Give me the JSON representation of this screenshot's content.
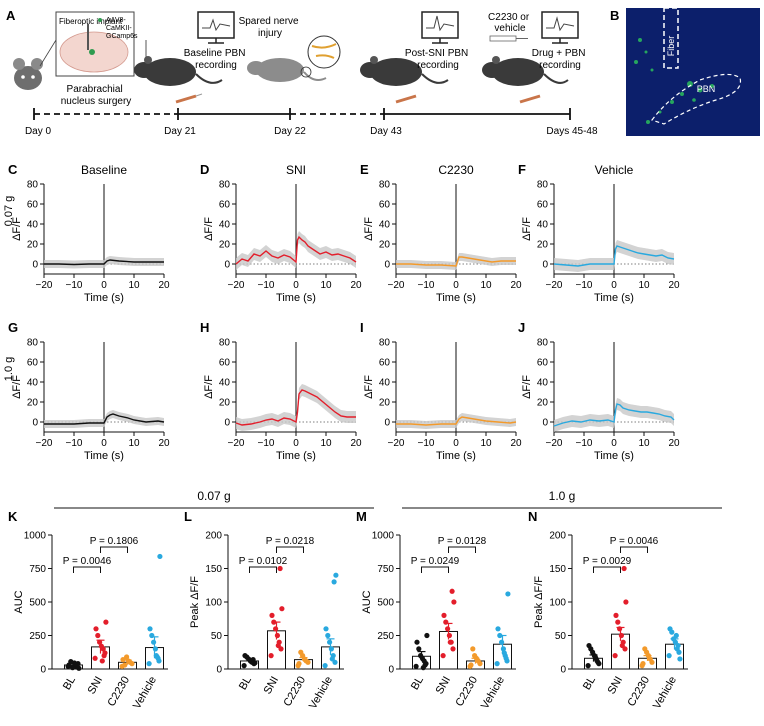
{
  "panelA": {
    "letter": "A",
    "implant_label": "Fiberoptic implant",
    "virus_label": [
      "AAV8-",
      "CaMKII-",
      "GCamp6s"
    ],
    "surgery_label": [
      "Parabrachial",
      "nucleus surgery"
    ],
    "baseline_label": [
      "Baseline PBN",
      "recording"
    ],
    "sni_label": [
      "Spared nerve",
      "injury"
    ],
    "postsni_label": [
      "Post-SNI PBN",
      "recording"
    ],
    "drug_admin_label": [
      "C2230 or",
      "vehicle"
    ],
    "drug_rec_label": [
      "Drug + PBN",
      "recording"
    ],
    "timeline": [
      "Day 0",
      "Day 21",
      "Day 22",
      "Day 43",
      "Days 45-48"
    ]
  },
  "panelB": {
    "letter": "B",
    "fiber_label": "Fiber",
    "pbn_label": "PBN"
  },
  "rows": [
    {
      "row_label": "0.07 g",
      "letters": [
        "C",
        "D",
        "E",
        "F"
      ]
    },
    {
      "row_label": "1.0 g",
      "letters": [
        "G",
        "H",
        "I",
        "J"
      ]
    }
  ],
  "trace_titles": [
    "Baseline",
    "SNI",
    "C2230",
    "Vehicle"
  ],
  "trace_axes": {
    "ylabel": "ΔF/F",
    "xlabel": "Time (s)",
    "yticks": [
      "0",
      "20",
      "40",
      "60",
      "80"
    ],
    "xticks": [
      "−20",
      "−10",
      "0",
      "10",
      "20"
    ]
  },
  "group_headers": [
    "0.07 g",
    "1.0 g"
  ],
  "colors": {
    "BL": "#111111",
    "SNI": "#e31e2b",
    "C2230": "#f39a2b",
    "Vehicle": "#29a9df",
    "sem": "#c8c8c8",
    "brain_bg": "#0c1f6b",
    "brain_signal": "#2fd45a"
  },
  "chart_data": [
    {
      "panel": "C",
      "type": "line",
      "title": "Baseline",
      "xlabel": "Time (s)",
      "ylabel": "ΔF/F",
      "xlim": [
        -20,
        20
      ],
      "ylim": [
        -10,
        80
      ],
      "x": [
        -20,
        -15,
        -10,
        -5,
        0,
        1,
        2,
        5,
        10,
        15,
        20
      ],
      "y": [
        0,
        0,
        -0.5,
        0,
        0,
        3,
        4,
        3,
        2,
        2,
        2
      ]
    },
    {
      "panel": "D",
      "type": "line",
      "title": "SNI",
      "xlabel": "Time (s)",
      "ylabel": "ΔF/F",
      "xlim": [
        -20,
        20
      ],
      "ylim": [
        -10,
        80
      ],
      "x": [
        -20,
        -18,
        -16,
        -14,
        -12,
        -10,
        -8,
        -6,
        -4,
        -2,
        0,
        0.5,
        1,
        2,
        3,
        4,
        6,
        8,
        10,
        12,
        14,
        16,
        18,
        20
      ],
      "y": [
        0,
        5,
        3,
        10,
        8,
        13,
        8,
        6,
        9,
        7,
        2,
        24,
        27,
        24,
        22,
        18,
        14,
        10,
        12,
        9,
        10,
        8,
        6,
        2
      ]
    },
    {
      "panel": "E",
      "type": "line",
      "title": "C2230",
      "xlabel": "Time (s)",
      "ylabel": "ΔF/F",
      "xlim": [
        -20,
        20
      ],
      "ylim": [
        -10,
        80
      ],
      "x": [
        -20,
        -15,
        -10,
        -5,
        0,
        1,
        2,
        4,
        6,
        8,
        10,
        12,
        15,
        18,
        20
      ],
      "y": [
        0,
        0,
        -1,
        -1,
        -2,
        7,
        7,
        6,
        5,
        4,
        3,
        2,
        3,
        3,
        3
      ]
    },
    {
      "panel": "F",
      "type": "line",
      "title": "Vehicle",
      "xlabel": "Time (s)",
      "ylabel": "ΔF/F",
      "xlim": [
        -20,
        20
      ],
      "ylim": [
        -10,
        80
      ],
      "x": [
        -20,
        -16,
        -12,
        -8,
        -4,
        0,
        0.5,
        1,
        2,
        3,
        4,
        6,
        8,
        10,
        12,
        14,
        16,
        18,
        20
      ],
      "y": [
        0,
        -1,
        -2,
        0,
        0,
        0,
        15,
        18,
        17,
        16,
        15,
        13,
        11,
        10,
        9,
        8,
        9,
        6,
        5
      ]
    },
    {
      "panel": "G",
      "type": "line",
      "title": "",
      "xlabel": "Time (s)",
      "ylabel": "ΔF/F",
      "xlim": [
        -20,
        20
      ],
      "ylim": [
        -10,
        80
      ],
      "x": [
        -20,
        -15,
        -10,
        -5,
        0,
        1,
        2,
        3,
        5,
        8,
        10,
        14,
        18,
        20
      ],
      "y": [
        -2,
        -2,
        -2,
        -1,
        -1,
        5,
        7,
        8,
        6,
        4,
        2,
        0,
        1,
        0
      ]
    },
    {
      "panel": "H",
      "type": "line",
      "title": "",
      "xlabel": "Time (s)",
      "ylabel": "ΔF/F",
      "xlim": [
        -20,
        20
      ],
      "ylim": [
        -10,
        80
      ],
      "x": [
        -20,
        -18,
        -15,
        -12,
        -10,
        -8,
        -6,
        -4,
        -2,
        0,
        0.5,
        1,
        2,
        3,
        5,
        7,
        9,
        11,
        13,
        15,
        17,
        20
      ],
      "y": [
        -1,
        -3,
        -2,
        0,
        2,
        3,
        1,
        4,
        3,
        0,
        10,
        28,
        32,
        31,
        28,
        25,
        20,
        15,
        10,
        6,
        5,
        5
      ]
    },
    {
      "panel": "I",
      "type": "line",
      "title": "",
      "xlabel": "Time (s)",
      "ylabel": "ΔF/F",
      "xlim": [
        -20,
        20
      ],
      "ylim": [
        -10,
        80
      ],
      "x": [
        -20,
        -15,
        -10,
        -5,
        0,
        1,
        2,
        4,
        6,
        8,
        10,
        14,
        18,
        20
      ],
      "y": [
        -2,
        -2,
        -3,
        -2,
        -2,
        3,
        5,
        4,
        3,
        2,
        1,
        0,
        -1,
        0
      ]
    },
    {
      "panel": "J",
      "type": "line",
      "title": "",
      "xlabel": "Time (s)",
      "ylabel": "ΔF/F",
      "xlim": [
        -20,
        20
      ],
      "ylim": [
        -10,
        80
      ],
      "x": [
        -20,
        -17,
        -14,
        -11,
        -8,
        -5,
        -2,
        0,
        0.5,
        1,
        2,
        3,
        5,
        7,
        9,
        11,
        13,
        15,
        17,
        19,
        20
      ],
      "y": [
        -4,
        -1,
        1,
        0,
        2,
        1,
        2,
        0,
        12,
        18,
        17,
        14,
        12,
        11,
        10,
        10,
        9,
        8,
        6,
        5,
        2
      ]
    },
    {
      "panel": "K",
      "type": "bar",
      "group": "0.07 g",
      "ylabel": "AUC",
      "ylim": [
        0,
        1000
      ],
      "yticks": [
        "0",
        "250",
        "500",
        "750",
        "1000"
      ],
      "categories": [
        "BL",
        "SNI",
        "C2230",
        "Vehicle"
      ],
      "values": [
        30,
        165,
        50,
        160
      ],
      "sem": [
        15,
        50,
        18,
        80
      ],
      "points": [
        [
          20,
          40,
          15,
          45,
          10,
          55,
          30,
          5,
          25,
          35
        ],
        [
          80,
          120,
          150,
          170,
          200,
          250,
          300,
          350,
          100,
          60
        ],
        [
          20,
          40,
          50,
          60,
          90,
          30,
          70
        ],
        [
          40,
          60,
          90,
          150,
          200,
          250,
          300,
          840,
          80,
          100
        ]
      ],
      "comparisons": [
        {
          "pair": [
            "BL",
            "SNI"
          ],
          "label": "P = 0.0046"
        },
        {
          "pair": [
            "SNI",
            "C2230"
          ],
          "label": "P = 0.1806"
        }
      ]
    },
    {
      "panel": "L",
      "type": "bar",
      "group": "0.07 g",
      "ylabel": "Peak ΔF/F",
      "ylim": [
        0,
        200
      ],
      "yticks": [
        "0",
        "50",
        "100",
        "150",
        "200"
      ],
      "categories": [
        "BL",
        "SNI",
        "C2230",
        "Vehicle"
      ],
      "values": [
        12,
        57,
        14,
        33
      ],
      "sem": [
        3,
        13,
        3,
        12
      ],
      "points": [
        [
          5,
          8,
          10,
          12,
          15,
          18,
          20,
          9,
          14,
          11
        ],
        [
          20,
          30,
          40,
          50,
          60,
          70,
          80,
          90,
          150,
          35
        ],
        [
          5,
          10,
          12,
          15,
          20,
          25,
          8
        ],
        [
          5,
          10,
          20,
          30,
          40,
          50,
          60,
          140,
          130,
          15
        ]
      ],
      "comparisons": [
        {
          "pair": [
            "BL",
            "SNI"
          ],
          "label": "P = 0.0102"
        },
        {
          "pair": [
            "SNI",
            "C2230"
          ],
          "label": "P = 0.0218"
        }
      ]
    },
    {
      "panel": "M",
      "type": "bar",
      "group": "1.0 g",
      "ylabel": "AUC",
      "ylim": [
        0,
        1000
      ],
      "yticks": [
        "0",
        "250",
        "500",
        "750",
        "1000"
      ],
      "categories": [
        "BL",
        "SNI",
        "C2230",
        "Vehicle"
      ],
      "values": [
        95,
        280,
        60,
        185
      ],
      "sem": [
        35,
        60,
        20,
        65
      ],
      "points": [
        [
          20,
          40,
          60,
          80,
          100,
          150,
          200,
          250,
          30,
          10
        ],
        [
          100,
          150,
          200,
          250,
          300,
          350,
          400,
          500,
          580,
          200
        ],
        [
          20,
          40,
          60,
          80,
          100,
          150,
          30
        ],
        [
          40,
          60,
          100,
          150,
          200,
          250,
          300,
          560,
          80,
          120
        ]
      ],
      "comparisons": [
        {
          "pair": [
            "BL",
            "SNI"
          ],
          "label": "P = 0.0249"
        },
        {
          "pair": [
            "SNI",
            "C2230"
          ],
          "label": "P = 0.0128"
        }
      ]
    },
    {
      "panel": "N",
      "type": "bar",
      "group": "1.0 g",
      "ylabel": "Peak ΔF/F",
      "ylim": [
        0,
        200
      ],
      "yticks": [
        "0",
        "50",
        "100",
        "150",
        "200"
      ],
      "categories": [
        "BL",
        "SNI",
        "C2230",
        "Vehicle"
      ],
      "values": [
        16,
        52,
        16,
        37
      ],
      "sem": [
        5,
        10,
        4,
        8
      ],
      "points": [
        [
          5,
          10,
          15,
          20,
          25,
          30,
          35,
          8,
          12,
          18
        ],
        [
          20,
          30,
          40,
          50,
          60,
          70,
          80,
          100,
          150,
          35
        ],
        [
          5,
          10,
          15,
          20,
          25,
          30,
          8
        ],
        [
          20,
          25,
          30,
          40,
          45,
          55,
          60,
          15,
          35,
          50
        ]
      ],
      "comparisons": [
        {
          "pair": [
            "BL",
            "SNI"
          ],
          "label": "P = 0.0029"
        },
        {
          "pair": [
            "SNI",
            "C2230"
          ],
          "label": "P = 0.0046"
        }
      ]
    }
  ]
}
